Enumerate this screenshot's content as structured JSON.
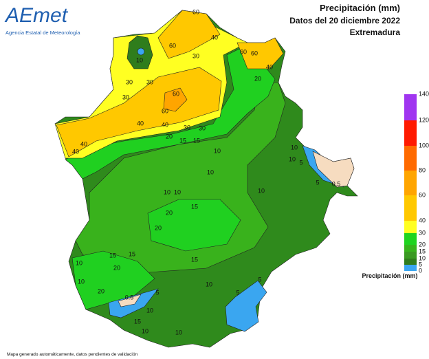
{
  "logo": {
    "name": "AEmet",
    "subtitle": "Agencia Estatal de Meteorología"
  },
  "header": {
    "title": "Precipitación (mm)",
    "date": "Datos del 20 diciembre 2022",
    "region": "Extremadura"
  },
  "legend": {
    "title": "Precipitación (mm)",
    "levels": [
      0,
      5,
      10,
      15,
      20,
      30,
      40,
      60,
      80,
      100,
      120,
      140
    ],
    "colors": [
      "#3aa6f0",
      "#2f7d1c",
      "#3a9a22",
      "#38b41c",
      "#1fd41f",
      "#ffff22",
      "#ffc800",
      "#ffa500",
      "#ff6a00",
      "#ff1a00",
      "#a035f0"
    ]
  },
  "map": {
    "contour_labels": [
      60,
      40,
      60,
      30,
      60,
      60,
      40,
      20,
      60,
      60,
      40,
      40,
      30,
      30,
      20,
      15,
      15,
      10,
      10,
      40,
      40,
      30,
      30,
      30,
      10,
      10,
      10,
      15,
      20,
      20,
      10,
      15,
      15,
      20,
      15,
      10,
      10,
      20,
      10,
      5,
      5,
      5,
      0.5,
      10,
      15,
      10,
      10,
      10,
      10,
      5,
      5,
      0.5
    ]
  },
  "footer": "Mapa generado automáticamente, datos pendientes de validación"
}
